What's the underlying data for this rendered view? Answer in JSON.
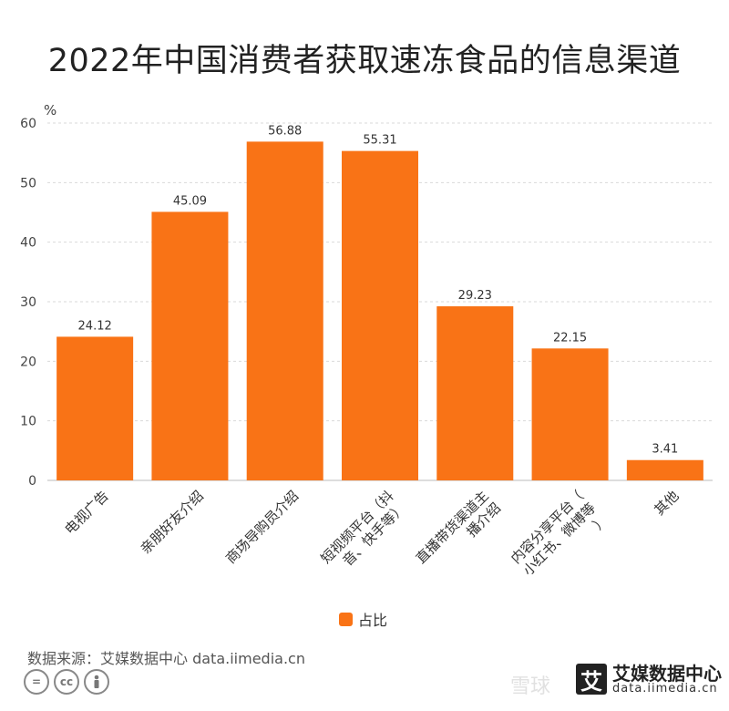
{
  "title": "2022年中国消费者获取速冻食品的信息渠道",
  "chart_data": {
    "type": "bar",
    "unit_label": "%",
    "categories": [
      "电视广告",
      "亲朋好友介绍",
      "商场导购员介绍",
      "短视频平台（抖音、快手等）",
      "直播带货渠道主播介绍",
      "内容分享平台（小红书、微博等）",
      "其他"
    ],
    "category_lines": [
      [
        "电视广告"
      ],
      [
        "亲朋好友介绍"
      ],
      [
        "商场导购员介绍"
      ],
      [
        "短视频平台（抖",
        "音、快手等）"
      ],
      [
        "直播带货渠道主",
        "播介绍"
      ],
      [
        "内容分享平台（",
        "小红书、微博等",
        "）"
      ],
      [
        "其他"
      ]
    ],
    "series": [
      {
        "name": "占比",
        "values": [
          24.12,
          45.09,
          56.88,
          55.31,
          29.23,
          22.15,
          3.41
        ]
      }
    ],
    "value_labels": [
      "24.12",
      "45.09",
      "56.88",
      "55.31",
      "29.23",
      "22.15",
      "3.41"
    ],
    "yticks": [
      0,
      10,
      20,
      30,
      40,
      50,
      60
    ],
    "ylim": [
      0,
      60
    ],
    "grid": true,
    "legend_position": "bottom",
    "color": "#f97316"
  },
  "legend": {
    "label": "占比"
  },
  "footer": {
    "source": "数据来源：艾媒数据中心 data.iimedia.cn",
    "brand_name": "艾媒数据中心",
    "brand_url": "data.iimedia.cn",
    "brand_logo_char": "艾",
    "watermark": "雪球"
  },
  "icons": [
    "cc-equal-icon",
    "cc-icon",
    "cc-by-person-icon"
  ]
}
